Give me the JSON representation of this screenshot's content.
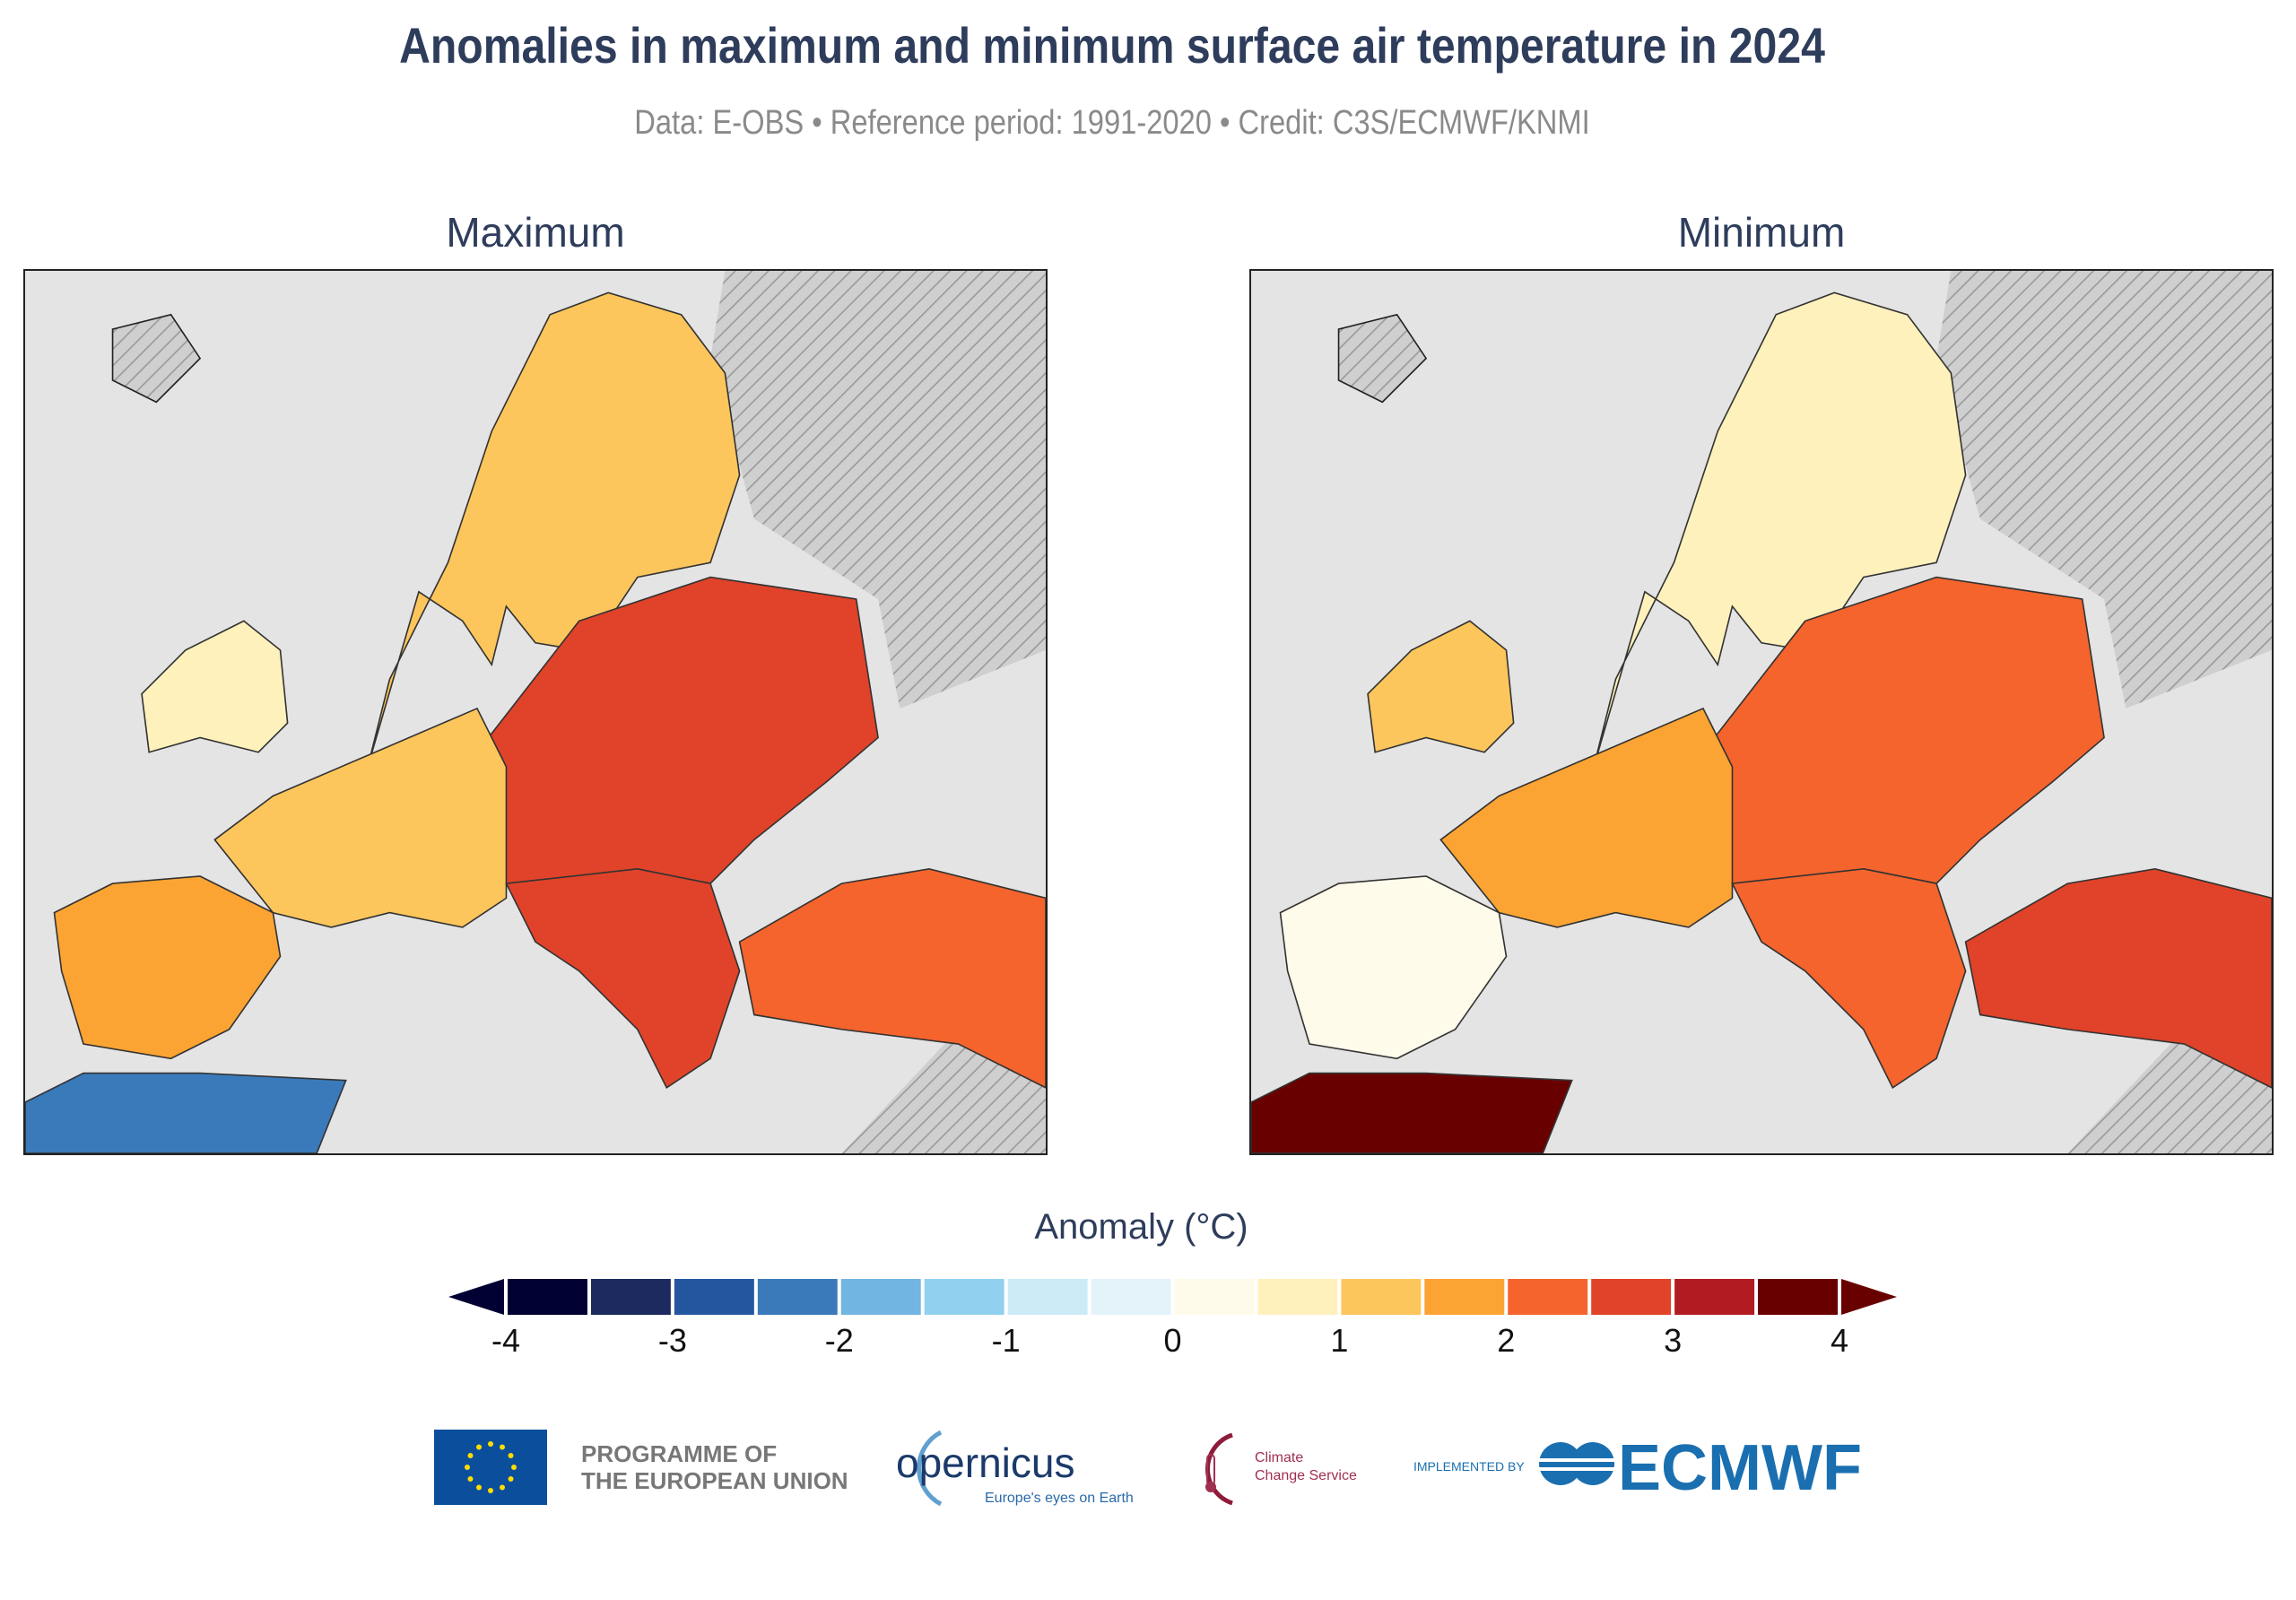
{
  "title": "Anomalies in maximum and minimum surface air temperature in 2024",
  "subtitle": "Data: E-OBS • Reference period: 1991-2020 • Credit: C3S/ECMWF/KNMI",
  "chart_data": {
    "type": "heatmap",
    "panels": [
      {
        "title": "Maximum",
        "regions": {
          "scandinavia": 1.2,
          "east_europe": 2.6,
          "west_europe": 1.3,
          "iberia": 1.6,
          "balkans": 2.9,
          "turkey": 2.3,
          "north_africa": -2.5,
          "uk_ireland": 0.6
        }
      },
      {
        "title": "Minimum",
        "regions": {
          "scandinavia": 0.8,
          "east_europe": 2.3,
          "west_europe": 1.7,
          "iberia": 0.4,
          "balkans": 2.4,
          "turkey": 2.6,
          "north_africa": 3.8,
          "uk_ireland": 1.0
        }
      }
    ],
    "colorbar": {
      "title": "Anomaly (°C)",
      "range": [
        -4,
        4
      ],
      "ticks": [
        "-4",
        "-3",
        "-2",
        "-1",
        "0",
        "1",
        "2",
        "3",
        "4"
      ],
      "colors": [
        "#000033",
        "#1c2a5f",
        "#2456a0",
        "#3a7aba",
        "#71b5e2",
        "#92d0f0",
        "#ccebf7",
        "#e4f3fa",
        "#fffbea",
        "#fff1bc",
        "#fdc65c",
        "#fca433",
        "#f4642c",
        "#e04329",
        "#b21b22",
        "#690000"
      ],
      "extend_low": "#000033",
      "extend_high": "#690000"
    },
    "no_data_pattern": "hatched grey"
  },
  "logos": {
    "eu": "PROGRAMME OF THE EUROPEAN UNION",
    "eu_line1": "PROGRAMME OF",
    "eu_line2": "THE EUROPEAN UNION",
    "copernicus": "opernicus",
    "copernicus_tag": "Europe's eyes on Earth",
    "c3s_line1": "Climate",
    "c3s_line2": "Change Service",
    "implemented": "IMPLEMENTED BY",
    "ecmwf": "ECMWF"
  }
}
